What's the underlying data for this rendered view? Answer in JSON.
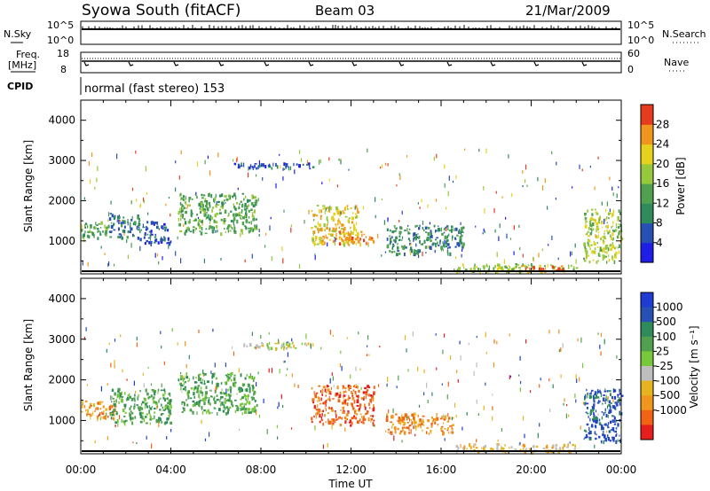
{
  "header": {
    "station": "Syowa South (fitACF)",
    "beam": "Beam 03",
    "date": "21/Mar/2009"
  },
  "strip_nsky": {
    "left_label": "N.Sky",
    "left_ticks": [
      "10^5",
      "10^0"
    ],
    "right_label": "N.Search",
    "right_ticks": [
      "10^5",
      "10^0"
    ]
  },
  "strip_freq": {
    "left_label_1": "Freq.",
    "left_label_2": "[MHz]",
    "left_ticks": [
      "18",
      "8"
    ],
    "right_label": "Nave",
    "right_ticks": [
      "60",
      "0"
    ]
  },
  "cpid": {
    "label": "CPID",
    "mode": "normal (fast stereo) 153"
  },
  "x_axis": {
    "label": "Time UT",
    "ticks": [
      "00:00",
      "04:00",
      "08:00",
      "12:00",
      "16:00",
      "20:00",
      "00:00"
    ]
  },
  "colors": {
    "blue": "#1e3cd2",
    "darkblue": "#2850b4",
    "green": "#2f8c3f",
    "lightgreen": "#78c83c",
    "yellow": "#e6d21e",
    "orange": "#f08c1e",
    "red": "#e61e1e",
    "grey": "#bebebe"
  },
  "chart_data": [
    {
      "type": "heatmap",
      "name": "Power",
      "ylabel": "Slant Range [km]",
      "xlabel": "",
      "xlim": [
        0,
        24
      ],
      "ylim": [
        180,
        4500
      ],
      "yticks": [
        "1000",
        "2000",
        "3000",
        "4000"
      ],
      "colorbar": {
        "label": "Power [dB]",
        "ticks": [
          "4",
          "8",
          "12",
          "16",
          "20",
          "24",
          "28"
        ],
        "colors": [
          "#1e1ee6",
          "#2850b4",
          "#2f8c5a",
          "#50a050",
          "#96c83c",
          "#e6d21e",
          "#f0961e",
          "#e63c1e"
        ]
      },
      "regions": [
        {
          "t0": 0.0,
          "t1": 1.2,
          "r0": 1050,
          "r1": 1500,
          "level": 3
        },
        {
          "t0": 1.2,
          "t1": 2.6,
          "r0": 1100,
          "r1": 1700,
          "level": 2
        },
        {
          "t0": 2.6,
          "t1": 4.0,
          "r0": 950,
          "r1": 1500,
          "level": 1
        },
        {
          "t0": 4.3,
          "t1": 7.8,
          "r0": 1200,
          "r1": 2200,
          "level": 3
        },
        {
          "t0": 6.7,
          "t1": 10.3,
          "r0": 2800,
          "r1": 2950,
          "level": 1
        },
        {
          "t0": 10.2,
          "t1": 12.3,
          "r0": 900,
          "r1": 1900,
          "level": 5
        },
        {
          "t0": 11.4,
          "t1": 13.0,
          "r0": 950,
          "r1": 1250,
          "level": 6
        },
        {
          "t0": 13.5,
          "t1": 17.0,
          "r0": 700,
          "r1": 1400,
          "level": 2
        },
        {
          "t0": 16.5,
          "t1": 22.0,
          "r0": 250,
          "r1": 450,
          "level": 4
        },
        {
          "t0": 19.5,
          "t1": 21.5,
          "r0": 250,
          "r1": 400,
          "level": 7
        },
        {
          "t0": 22.3,
          "t1": 24.0,
          "r0": 500,
          "r1": 1800,
          "level": 4
        }
      ]
    },
    {
      "type": "heatmap",
      "name": "Velocity",
      "ylabel": "Slant Range [km]",
      "xlabel": "Time UT",
      "xlim": [
        0,
        24
      ],
      "ylim": [
        180,
        4500
      ],
      "yticks": [
        "1000",
        "2000",
        "3000",
        "4000"
      ],
      "colorbar": {
        "label": "Velocity [m s⁻¹]",
        "ticks": [
          "1000",
          "500",
          "100",
          "25",
          "-25",
          "-100",
          "-500",
          "-1000"
        ],
        "colors": [
          "#1e3cd2",
          "#2850b4",
          "#2f8c5a",
          "#50a050",
          "#78c83c",
          "#bebebe",
          "#e6b41e",
          "#f0961e",
          "#f06414",
          "#e61e1e"
        ]
      },
      "regions": [
        {
          "t0": 0.0,
          "t1": 1.5,
          "r0": 1050,
          "r1": 1500,
          "level": 7
        },
        {
          "t0": 1.3,
          "t1": 4.0,
          "r0": 950,
          "r1": 1800,
          "level": 3
        },
        {
          "t0": 4.3,
          "t1": 7.8,
          "r0": 1200,
          "r1": 2200,
          "level": 3
        },
        {
          "t0": 6.7,
          "t1": 10.3,
          "r0": 2800,
          "r1": 2950,
          "level": 5
        },
        {
          "t0": 10.2,
          "t1": 13.0,
          "r0": 900,
          "r1": 1900,
          "level": 8
        },
        {
          "t0": 13.5,
          "t1": 16.5,
          "r0": 700,
          "r1": 1200,
          "level": 7
        },
        {
          "t0": 16.5,
          "t1": 22.0,
          "r0": 250,
          "r1": 450,
          "level": 6
        },
        {
          "t0": 22.3,
          "t1": 24.0,
          "r0": 500,
          "r1": 1800,
          "level": 1
        }
      ]
    }
  ]
}
